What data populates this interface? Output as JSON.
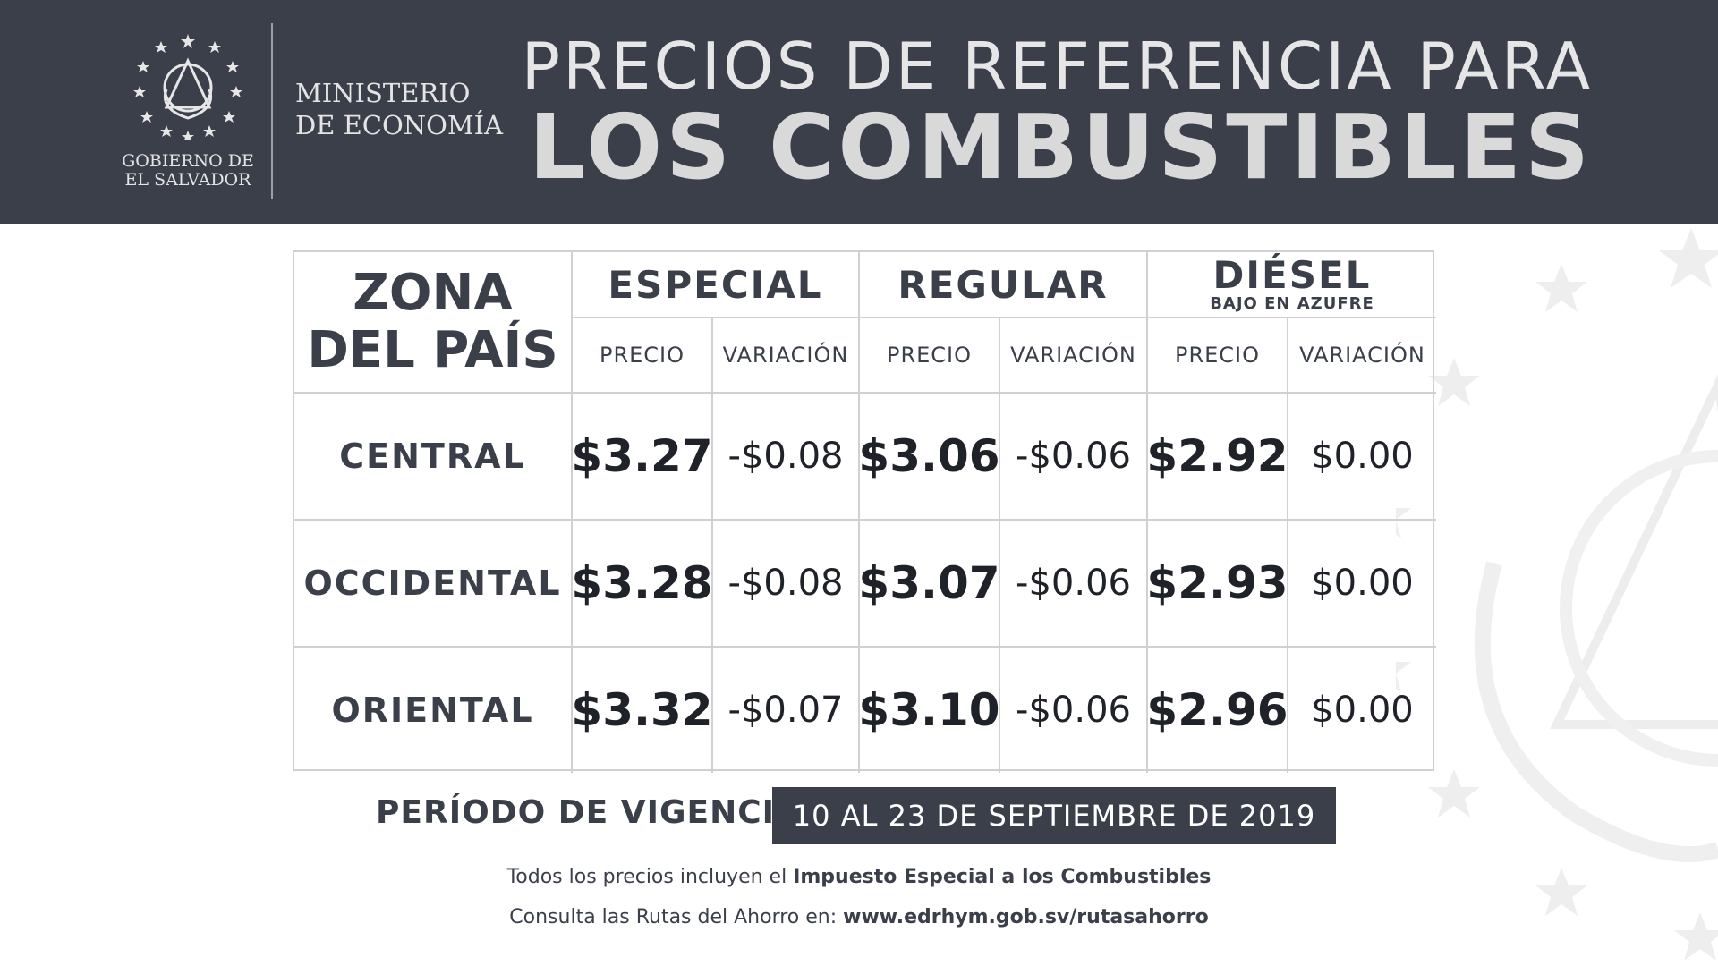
{
  "header": {
    "government": [
      "GOBIERNO DE",
      "EL SALVADOR"
    ],
    "ministry": [
      "MINISTERIO",
      "DE ECONOMÍA"
    ],
    "title_line1": "PRECIOS DE REFERENCIA PARA",
    "title_line2": "LOS COMBUSTIBLES"
  },
  "table": {
    "zone_header": [
      "ZONA",
      "DEL PAÍS"
    ],
    "fuels": [
      {
        "name": "ESPECIAL",
        "subtitle": ""
      },
      {
        "name": "REGULAR",
        "subtitle": ""
      },
      {
        "name": "DIÉSEL",
        "subtitle": "BAJO EN AZUFRE"
      }
    ],
    "price_label": "PRECIO",
    "variation_label": "VARIACIÓN",
    "rows": [
      {
        "zone": "CENTRAL",
        "especial_precio": "$3.27",
        "especial_var": "-$0.08",
        "regular_precio": "$3.06",
        "regular_var": "-$0.06",
        "diesel_precio": "$2.92",
        "diesel_var": "$0.00"
      },
      {
        "zone": "OCCIDENTAL",
        "especial_precio": "$3.28",
        "especial_var": "-$0.08",
        "regular_precio": "$3.07",
        "regular_var": "-$0.06",
        "diesel_precio": "$2.93",
        "diesel_var": "$0.00"
      },
      {
        "zone": "ORIENTAL",
        "especial_precio": "$3.32",
        "especial_var": "-$0.07",
        "regular_precio": "$3.10",
        "regular_var": "-$0.06",
        "diesel_precio": "$2.96",
        "diesel_var": "$0.00"
      }
    ]
  },
  "footer": {
    "periodo_label": "PERÍODO DE VIGENCIA:",
    "periodo_value": "10 AL 23 DE SEPTIEMBRE DE 2019",
    "note1_prefix": "Todos los precios incluyen el ",
    "note1_bold": "Impuesto Especial a los Combustibles",
    "note2_prefix": "Consulta las Rutas del Ahorro en: ",
    "note2_bold": "www.edrhym.gob.sv/rutasahorro"
  },
  "colors": {
    "header_bg": "#3a3f4a",
    "border": "#d0d0d0",
    "text": "#3a3f4a"
  },
  "icons": {
    "seal": "el-salvador-coat-of-arms-icon",
    "stars": "star-icon"
  }
}
